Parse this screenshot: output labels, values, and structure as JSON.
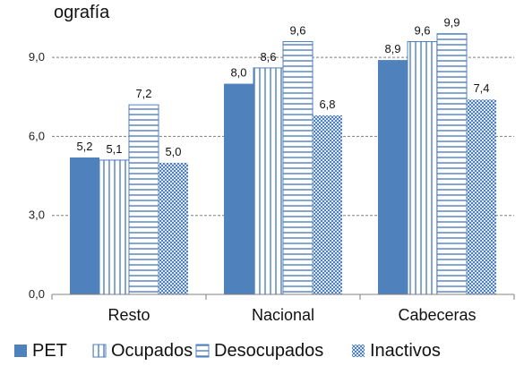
{
  "header": {
    "title_fragment": "ografía"
  },
  "colors": {
    "pet": "#4f81bd",
    "ocupados_stroke": "#4f81bd",
    "desocupados_stroke": "#4f81bd",
    "inactivos_dot": "#4f81bd",
    "grid": "#7f7f7f",
    "axis": "#808080"
  },
  "chart_data": {
    "type": "bar",
    "categories": [
      "Resto",
      "Nacional",
      "Cabeceras"
    ],
    "series": [
      {
        "name": "PET",
        "values": [
          5.2,
          8.0,
          8.9
        ],
        "labels": [
          "5,2",
          "8,0",
          "8,9"
        ],
        "pattern": "solid"
      },
      {
        "name": "Ocupados",
        "values": [
          5.1,
          8.6,
          9.6
        ],
        "labels": [
          "5,1",
          "8,6",
          "9,6"
        ],
        "pattern": "vertical-lines"
      },
      {
        "name": "Desocupados",
        "values": [
          7.2,
          9.6,
          9.9
        ],
        "labels": [
          "7,2",
          "9,6",
          "9,9"
        ],
        "pattern": "horizontal-lines"
      },
      {
        "name": "Inactivos",
        "values": [
          5.0,
          6.8,
          7.4
        ],
        "labels": [
          "5,0",
          "6,8",
          "7,4"
        ],
        "pattern": "dots"
      }
    ],
    "yticks": [
      0,
      3,
      6,
      9
    ],
    "ytick_labels": [
      "0,0",
      "3,0",
      "6,0",
      "9,0"
    ],
    "ylim": [
      0,
      10.5
    ],
    "grid": true,
    "legend_position": "bottom"
  }
}
